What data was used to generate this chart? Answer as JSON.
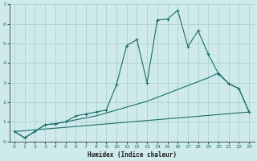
{
  "xlabel": "Humidex (Indice chaleur)",
  "background_color": "#ceeaea",
  "line_color": "#1a6e6a",
  "grid_color": "#b0d0d0",
  "xlim": [
    -0.5,
    23.5
  ],
  "ylim": [
    0,
    7
  ],
  "xticks": [
    0,
    1,
    2,
    3,
    4,
    5,
    6,
    7,
    8,
    9,
    10,
    11,
    12,
    13,
    14,
    15,
    16,
    17,
    18,
    19,
    20,
    21,
    22,
    23
  ],
  "yticks": [
    0,
    1,
    2,
    3,
    4,
    5,
    6,
    7
  ],
  "line1_x": [
    0,
    1,
    2,
    3,
    4,
    5,
    6,
    7,
    8,
    9,
    10,
    11,
    12,
    13,
    14,
    15,
    16,
    17,
    18,
    19,
    20,
    21,
    22,
    23
  ],
  "line1_y": [
    0.5,
    0.18,
    0.5,
    0.85,
    0.9,
    1.0,
    1.3,
    1.4,
    1.5,
    1.6,
    2.9,
    4.9,
    5.2,
    3.0,
    6.2,
    6.25,
    6.7,
    4.85,
    5.65,
    4.45,
    3.45,
    2.95,
    2.7,
    1.5
  ],
  "line2_x": [
    0,
    1,
    2,
    3,
    4,
    5,
    6,
    7,
    8,
    9,
    10,
    11,
    12,
    13,
    14,
    15,
    16,
    17,
    18,
    19,
    20,
    21,
    22,
    23
  ],
  "line2_y": [
    0.5,
    0.18,
    0.5,
    0.85,
    0.9,
    1.0,
    1.1,
    1.2,
    1.3,
    1.45,
    1.6,
    1.75,
    1.9,
    2.05,
    2.25,
    2.45,
    2.65,
    2.85,
    3.05,
    3.25,
    3.5,
    2.95,
    2.7,
    1.5
  ],
  "line3_x": [
    0,
    23
  ],
  "line3_y": [
    0.5,
    1.5
  ]
}
